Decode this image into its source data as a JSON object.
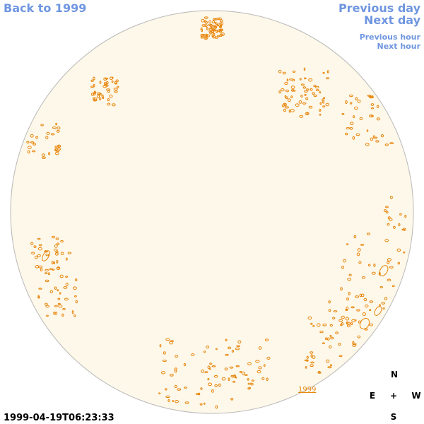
{
  "links": {
    "back": "Back to 1999",
    "previous_day": "Previous day",
    "next_day": "Next day",
    "previous_hour": "Previous hour",
    "next_hour": "Next hour"
  },
  "disk_label": "1999",
  "compass": {
    "n": "N",
    "e": "E",
    "center": "+",
    "w": "W",
    "s": "S"
  },
  "timestamp": "1999-04-19T06:23:33"
}
